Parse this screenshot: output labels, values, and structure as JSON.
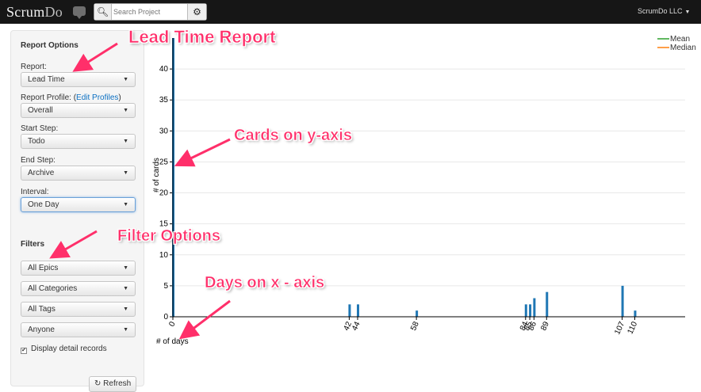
{
  "topbar": {
    "brand_main": "Scrum",
    "brand_sub": "Do",
    "search_placeholder": "Search Project",
    "search_icon": "magnifier-icon",
    "settings_icon": "gear-icon",
    "account_label": "ScrumDo LLC"
  },
  "sidebar": {
    "report_options_heading": "Report Options",
    "report_label": "Report:",
    "report_value": "Lead Time",
    "profile_label": "Report Profile: (",
    "profile_link": "Edit Profiles",
    "profile_label_end": ")",
    "profile_value": "Overall",
    "start_label": "Start Step:",
    "start_value": "Todo",
    "end_label": "End Step:",
    "end_value": "Archive",
    "interval_label": "Interval:",
    "interval_value": "One Day",
    "filters_heading": "Filters",
    "epics_value": "All Epics",
    "categories_value": "All Categories",
    "tags_value": "All Tags",
    "assignee_value": "Anyone",
    "detail_label": "Display detail records",
    "detail_checked": true,
    "refresh_label": "Refresh"
  },
  "annotations": {
    "lead_time": "Lead Time Report",
    "cards_axis": "Cards on y-axis",
    "filter_options": "Filter Options",
    "days_axis": "Days on x - axis",
    "color": "#ff2f6a"
  },
  "chart_data": {
    "type": "bar",
    "xlabel": "# of days",
    "ylabel": "# of cards",
    "x": [
      0,
      42,
      44,
      58,
      84,
      85,
      86,
      89,
      107,
      110
    ],
    "values": [
      45,
      2,
      2,
      1,
      2,
      2,
      3,
      4,
      5,
      1
    ],
    "xlim": [
      0,
      122
    ],
    "ylim": [
      0,
      45
    ],
    "yticks": [
      0,
      5,
      10,
      15,
      20,
      25,
      30,
      35,
      40
    ],
    "xtick_labels": [
      "0",
      "42",
      "44",
      "58",
      "84",
      "85",
      "86",
      "89",
      "107",
      "110"
    ],
    "bar_color": "#1f77b4",
    "grid": true,
    "legend": [
      {
        "name": "Mean",
        "color": "#2ca02c"
      },
      {
        "name": "Median",
        "color": "#ff7f0e"
      }
    ],
    "legend_position": "top-right"
  }
}
